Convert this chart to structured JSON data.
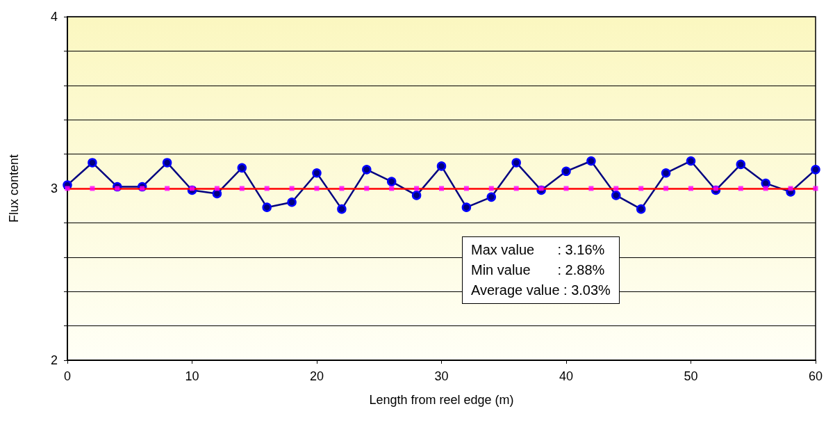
{
  "chart_data": {
    "type": "line",
    "xlabel": "Length from reel edge (m)",
    "ylabel": "Flux content",
    "x": [
      0,
      2,
      4,
      6,
      8,
      10,
      12,
      14,
      16,
      18,
      20,
      22,
      24,
      26,
      28,
      30,
      32,
      34,
      36,
      38,
      40,
      42,
      44,
      46,
      48,
      50,
      52,
      54,
      56,
      58,
      60
    ],
    "series": [
      {
        "color": "#000080",
        "marker": "circle",
        "values": [
          3.02,
          3.15,
          3.01,
          3.01,
          3.15,
          2.99,
          2.97,
          3.12,
          2.89,
          2.92,
          3.09,
          2.88,
          3.11,
          3.04,
          2.96,
          3.13,
          2.89,
          2.95,
          3.15,
          2.99,
          3.1,
          3.16,
          2.96,
          2.88,
          3.09,
          3.16,
          2.99,
          3.14,
          3.03,
          2.98,
          3.11
        ]
      },
      {
        "type": "scatter",
        "color": "#ff00ff",
        "marker": "square",
        "values": [
          3,
          3,
          3,
          3,
          3,
          3,
          3,
          3,
          3,
          3,
          3,
          3,
          3,
          3,
          3,
          3,
          3,
          3,
          3,
          3,
          3,
          3,
          3,
          3,
          3,
          3,
          3,
          3,
          3,
          3,
          3
        ]
      }
    ],
    "ref_lines": [
      {
        "axis": "y",
        "value": 3,
        "color": "#ff0000"
      }
    ],
    "xlim": [
      0,
      60
    ],
    "xticks": [
      0,
      10,
      20,
      30,
      40,
      50,
      60
    ],
    "ylim": [
      2,
      4
    ],
    "yticks": [
      2,
      {
        "value": 2.2,
        "label": null
      },
      {
        "value": 2.4,
        "label": null
      },
      {
        "value": 2.6,
        "label": null
      },
      {
        "value": 2.8,
        "label": null
      },
      3,
      {
        "value": 3.2,
        "label": null
      },
      {
        "value": 3.4,
        "label": null
      },
      {
        "value": 3.6,
        "label": null
      },
      {
        "value": 3.8,
        "label": null
      },
      4
    ],
    "grid": "y",
    "annotations": [
      "Max value      : 3.16%",
      "Min value       : 2.88%",
      "Average value : 3.03%"
    ]
  }
}
